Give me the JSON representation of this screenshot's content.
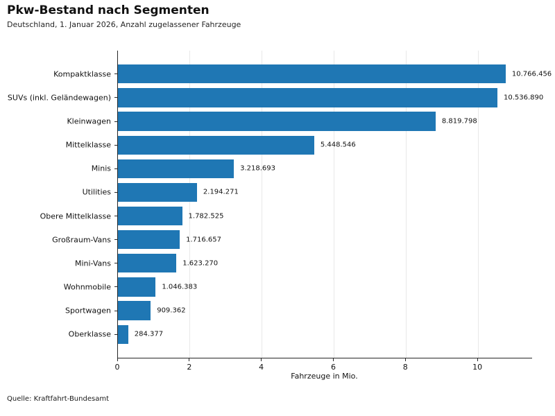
{
  "header": {
    "title": "Pkw-Bestand nach Segmenten",
    "subtitle": "Deutschland, 1. Januar 2026, Anzahl zugelassener Fahrzeuge"
  },
  "footer": {
    "source": "Quelle: Kraftfahrt-Bundesamt"
  },
  "chart_data": {
    "type": "bar",
    "orientation": "horizontal",
    "title": "Pkw-Bestand nach Segmenten",
    "subtitle": "Deutschland, 1. Januar 2026, Anzahl zugelassener Fahrzeuge",
    "categories": [
      "Kompaktklasse",
      "SUVs (inkl. Geländewagen)",
      "Kleinwagen",
      "Mittelklasse",
      "Minis",
      "Utilities",
      "Obere Mittelklasse",
      "Großraum-Vans",
      "Mini-Vans",
      "Wohnmobile",
      "Sportwagen",
      "Oberklasse"
    ],
    "values": [
      10766456,
      10536890,
      8819798,
      5448546,
      3218693,
      2194271,
      1782525,
      1716657,
      1623270,
      1046383,
      909362,
      284377
    ],
    "value_labels": [
      "10.766.456",
      "10.536.890",
      "8.819.798",
      "5.448.546",
      "3.218.693",
      "2.194.271",
      "1.782.525",
      "1.716.657",
      "1.623.270",
      "1.046.383",
      "909.362",
      "284.377"
    ],
    "xlabel": "Fahrzeuge in Mio.",
    "x_ticks": [
      0,
      2,
      4,
      6,
      8,
      10
    ],
    "xlim": [
      0,
      11.5
    ],
    "bar_color": "#1f77b4",
    "grid": true,
    "gridline_color": "#e8e8e8",
    "legend": "none",
    "value_unit": "Mio"
  }
}
